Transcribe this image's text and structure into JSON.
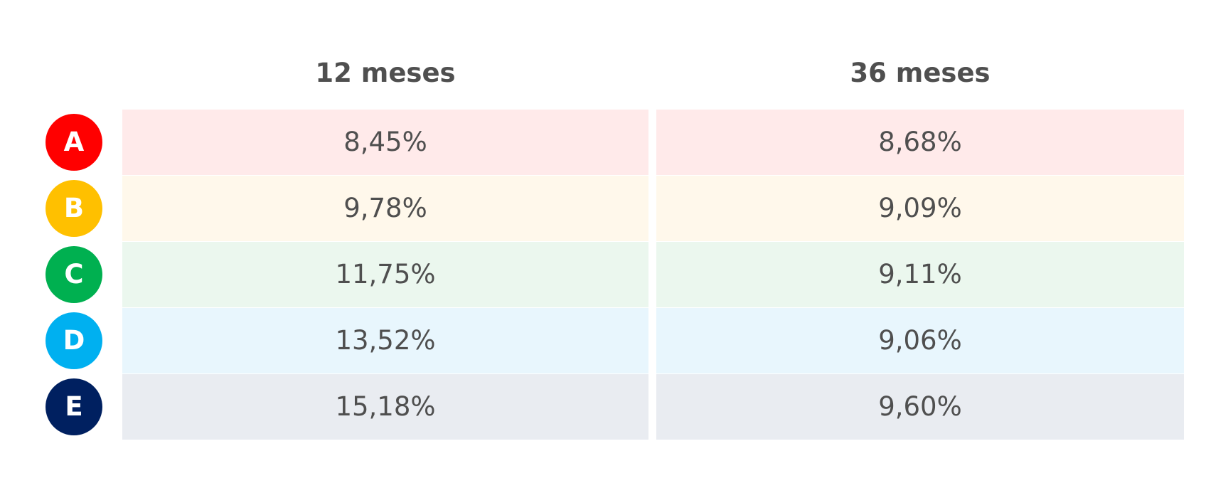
{
  "table": {
    "columns": [
      "12 meses",
      "36 meses"
    ],
    "rows": [
      {
        "label": "A",
        "badge_color": "#ff0000",
        "cell_color": "#ffeaea",
        "values": [
          "8,45%",
          "8,68%"
        ]
      },
      {
        "label": "B",
        "badge_color": "#ffc000",
        "cell_color": "#fff8eb",
        "values": [
          "9,78%",
          "9,09%"
        ]
      },
      {
        "label": "C",
        "badge_color": "#00b050",
        "cell_color": "#ebf7ee",
        "values": [
          "11,75%",
          "9,11%"
        ]
      },
      {
        "label": "D",
        "badge_color": "#00b0f0",
        "cell_color": "#e8f6fd",
        "values": [
          "13,52%",
          "9,06%"
        ]
      },
      {
        "label": "E",
        "badge_color": "#002060",
        "cell_color": "#e9ecf1",
        "values": [
          "15,18%",
          "9,60%"
        ]
      }
    ]
  }
}
